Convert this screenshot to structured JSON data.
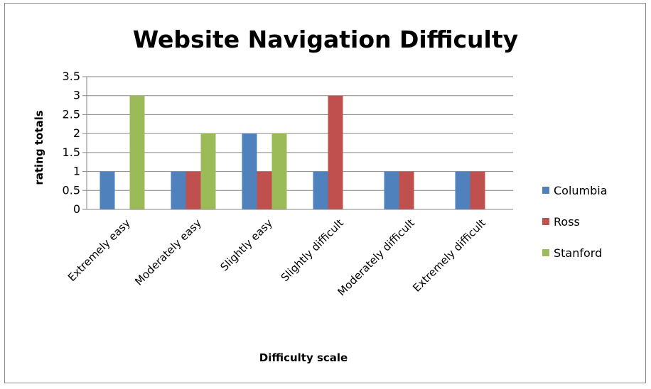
{
  "chart_data": {
    "type": "bar",
    "title": "Website Navigation Difficulty",
    "xlabel": "Difficulty scale",
    "ylabel": "rating totals",
    "categories": [
      "Extremely easy",
      "Moderately easy",
      "Slightly easy",
      "Slightly difficult",
      "Moderately difficult",
      "Extremely difficult"
    ],
    "series": [
      {
        "name": "Columbia",
        "color": "#4f81bd",
        "values": [
          1,
          1,
          2,
          1,
          1,
          1
        ]
      },
      {
        "name": "Ross",
        "color": "#c0504d",
        "values": [
          0,
          1,
          1,
          3,
          1,
          1
        ]
      },
      {
        "name": "Stanford",
        "color": "#9bbb59",
        "values": [
          3,
          2,
          2,
          0,
          0,
          0
        ]
      }
    ],
    "ylim": [
      0,
      3.5
    ],
    "yticks": [
      "0",
      "0.5",
      "1",
      "1.5",
      "2",
      "2.5",
      "3",
      "3.5"
    ],
    "grid": true,
    "legend_position": "right"
  }
}
